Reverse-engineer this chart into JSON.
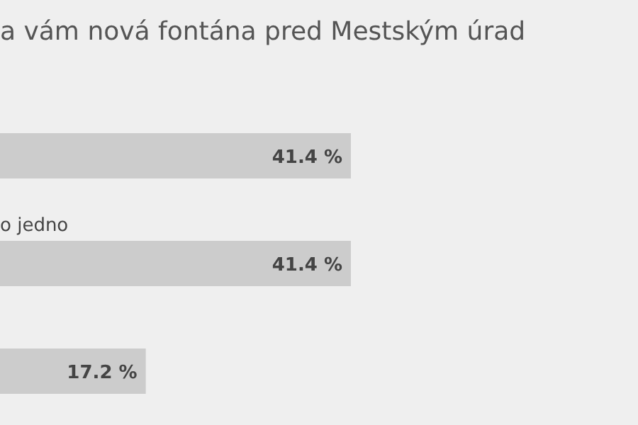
{
  "chart_data": {
    "type": "bar",
    "orientation": "horizontal",
    "title": "a vám nová fontána pred Mestským úrad",
    "categories": [
      null,
      "o jedno",
      null
    ],
    "values": [
      41.4,
      41.4,
      17.2
    ],
    "value_labels": [
      "41.4 %",
      "41.4 %",
      "17.2 %"
    ],
    "color": "#cccccc",
    "grid": false,
    "legend": false
  }
}
